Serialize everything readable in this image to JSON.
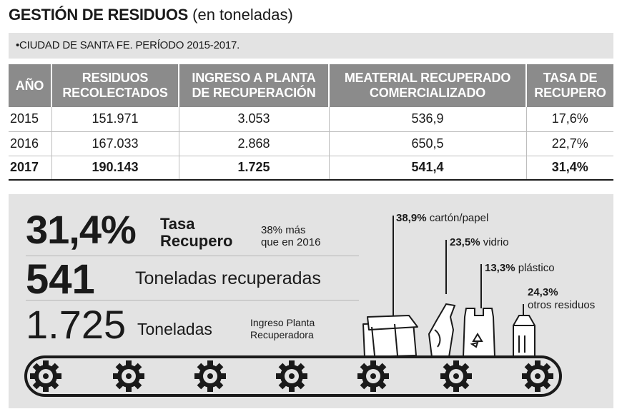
{
  "header": {
    "title_bold": "GESTIÓN DE RESIDUOS",
    "title_light": "(en toneladas)",
    "subtitle": "•CIUDAD DE SANTA FE. PERÍODO 2015-2017."
  },
  "table": {
    "columns": [
      "AÑO",
      "RESIDUOS RECOLECTADOS",
      "INGRESO A PLANTA DE RECUPERACIÓN",
      "MEATERIAL RECUPERADO COMERCIALIZADO",
      "TASA DE RECUPERO"
    ],
    "rows": [
      [
        "2015",
        "151.971",
        "3.053",
        "536,9",
        "17,6%"
      ],
      [
        "2016",
        "167.033",
        "2.868",
        "650,5",
        "22,7%"
      ],
      [
        "2017",
        "190.143",
        "1.725",
        "541,4",
        "31,4%"
      ]
    ]
  },
  "stats": {
    "rate": {
      "value": "31,4%",
      "label_line1": "Tasa",
      "label_line2": "Recupero",
      "note_line1": "38% más",
      "note_line2": "que en 2016"
    },
    "recovered": {
      "value": "541",
      "label": "Toneladas recuperadas"
    },
    "plant": {
      "value": "1.725",
      "label": "Toneladas",
      "note_line1": "Ingreso Planta",
      "note_line2": "Recuperadora"
    }
  },
  "chart_data": {
    "type": "pie",
    "categories": [
      "cartón/papel",
      "vidrio",
      "plástico",
      "otros residuos"
    ],
    "values": [
      38.9,
      23.5,
      13.3,
      24.3
    ],
    "value_labels": [
      "38,9%",
      "23,5%",
      "13,3%",
      "24,3%"
    ],
    "label_lines": [
      [
        "cartón/papel"
      ],
      [
        "vidrio"
      ],
      [
        "plástico"
      ],
      [
        "",
        "otros residuos"
      ]
    ]
  },
  "colors": {
    "header_bg": "#8b8b8b",
    "panel_bg": "#e3e3e3",
    "ink": "#1a1a1a"
  },
  "icons": [
    "cardboard-box-icon",
    "glass-bottle-icon",
    "plastic-bag-icon",
    "milk-carton-icon",
    "gear-icon"
  ]
}
